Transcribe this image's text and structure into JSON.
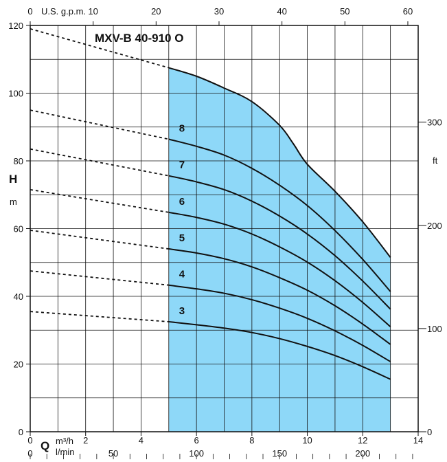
{
  "chart_data": {
    "type": "line",
    "title": "MXV-B 40-910 O",
    "shaded_region_color": "#8ed8f8",
    "line_color": "#111111",
    "grid": true,
    "xlim": [
      0,
      14
    ],
    "ylim": [
      0,
      120
    ],
    "x_ticks": [
      "0",
      "2",
      "4",
      "6",
      "8",
      "10",
      "12",
      "14"
    ],
    "y_ticks": [
      "0",
      "20",
      "40",
      "60",
      "80",
      "100",
      "120"
    ],
    "y_left_label": "H",
    "y_left_unit": "m",
    "x_bottom_label": "Q",
    "x_bottom_unit_1": "m³/h",
    "x_bottom_unit_2": "l/min",
    "lmin_ticks": [
      "0",
      "50",
      "100",
      "150",
      "200"
    ],
    "lmin_values": [
      0,
      50,
      100,
      150,
      200
    ],
    "gpm_unit": "U.S. g.p.m.",
    "gpm_ticks": [
      "0",
      "10",
      "20",
      "30",
      "40",
      "50",
      "60"
    ],
    "gpm_values": [
      0,
      10,
      20,
      30,
      40,
      50,
      60
    ],
    "ft_unit": "ft",
    "ft_ticks": [
      "0",
      "100",
      "200",
      "300"
    ],
    "ft_values": [
      0,
      100,
      200,
      300
    ],
    "operating_range": [
      5,
      13
    ],
    "series": [
      {
        "name": "3",
        "dashed_x": [
          0,
          5
        ],
        "dashed_y": [
          35.5,
          32.5
        ],
        "x": [
          5,
          6,
          7,
          8,
          9,
          10,
          11,
          12,
          13
        ],
        "y": [
          32.5,
          31.6,
          30.6,
          29.3,
          27.5,
          25.2,
          22.5,
          19.2,
          15.5
        ]
      },
      {
        "name": "4",
        "dashed_x": [
          0,
          5
        ],
        "dashed_y": [
          47.5,
          43.3
        ],
        "x": [
          5,
          6,
          7,
          8,
          9,
          10,
          11,
          12,
          13
        ],
        "y": [
          43.3,
          42.2,
          40.9,
          39.0,
          36.5,
          33.5,
          29.8,
          25.5,
          20.7
        ]
      },
      {
        "name": "5",
        "dashed_x": [
          0,
          5
        ],
        "dashed_y": [
          59.5,
          54.0
        ],
        "x": [
          5,
          6,
          7,
          8,
          9,
          10,
          11,
          12,
          13
        ],
        "y": [
          54.0,
          52.8,
          51.1,
          48.7,
          45.5,
          41.8,
          37.2,
          31.8,
          25.8
        ]
      },
      {
        "name": "6",
        "dashed_x": [
          0,
          5
        ],
        "dashed_y": [
          71.5,
          64.8
        ],
        "x": [
          5,
          6,
          7,
          8,
          9,
          10,
          11,
          12,
          13
        ],
        "y": [
          64.8,
          63.3,
          61.3,
          58.4,
          54.6,
          50.1,
          44.6,
          38.2,
          31.0
        ]
      },
      {
        "name": "7",
        "dashed_x": [
          0,
          5
        ],
        "dashed_y": [
          83.5,
          75.6
        ],
        "x": [
          5,
          6,
          7,
          8,
          9,
          10,
          11,
          12,
          13
        ],
        "y": [
          75.6,
          73.8,
          71.5,
          68.1,
          63.7,
          58.4,
          52.0,
          44.5,
          36.2
        ]
      },
      {
        "name": "8",
        "dashed_x": [
          0,
          5
        ],
        "dashed_y": [
          95.0,
          86.4
        ],
        "x": [
          5,
          6,
          7,
          8,
          9,
          10,
          11,
          12,
          13
        ],
        "y": [
          86.4,
          84.3,
          81.7,
          77.8,
          72.8,
          66.8,
          59.4,
          50.9,
          41.4
        ]
      },
      {
        "name": "",
        "dashed_x": [
          0,
          5
        ],
        "dashed_y": [
          119.0,
          107.5
        ],
        "x": [
          5,
          6,
          7,
          8,
          9,
          9.5,
          10,
          11,
          12,
          13
        ],
        "y": [
          107.5,
          105.0,
          101.5,
          97.5,
          90.5,
          85.0,
          79.0,
          71.0,
          62.0,
          51.5
        ]
      }
    ]
  }
}
